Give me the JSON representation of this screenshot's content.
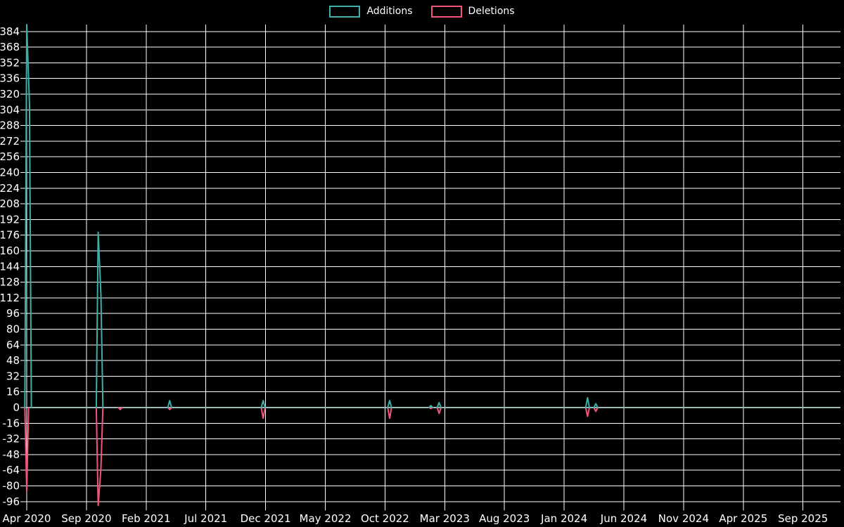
{
  "legend": {
    "additions_label": "Additions",
    "deletions_label": "Deletions"
  },
  "colors": {
    "background": "#000000",
    "grid": "#ffffff",
    "text": "#ffffff",
    "additions": "#3cb0a8",
    "deletions": "#f4547c",
    "zero_baseline": "#9bbab8"
  },
  "chart_data": {
    "type": "line",
    "title": "",
    "legend_position": "top-center",
    "grid": "on",
    "x_axis": {
      "tick_labels": [
        "Apr 2020",
        "Sep 2020",
        "Feb 2021",
        "Jul 2021",
        "Dec 2021",
        "May 2022",
        "Oct 2022",
        "Mar 2023",
        "Aug 2023",
        "Jan 2024",
        "Jun 2024",
        "Nov 2024",
        "Apr 2025",
        "Sep 2025"
      ],
      "months_per_tick": 5,
      "unit": "weekly samples",
      "weeks_span": 296
    },
    "y_axis": {
      "min": -96,
      "max": 384,
      "step": 16,
      "tick_labels": [
        "384",
        "368",
        "352",
        "336",
        "320",
        "304",
        "288",
        "272",
        "256",
        "240",
        "224",
        "208",
        "192",
        "176",
        "160",
        "144",
        "128",
        "112",
        "96",
        "80",
        "64",
        "48",
        "32",
        "16",
        "0",
        "-16",
        "-32",
        "-48",
        "-64",
        "-80",
        "-96"
      ]
    },
    "baseline_value": 0,
    "series": [
      {
        "name": "Additions",
        "color_key": "additions",
        "points": [
          {
            "week": 0,
            "value": 391
          },
          {
            "week": 1,
            "value": 310
          },
          {
            "week": 26,
            "value": 179
          },
          {
            "week": 27,
            "value": 115
          },
          {
            "week": 52,
            "value": 7
          },
          {
            "week": 86,
            "value": 7
          },
          {
            "week": 132,
            "value": 7
          },
          {
            "week": 147,
            "value": 2
          },
          {
            "week": 150,
            "value": 5
          },
          {
            "week": 204,
            "value": 10
          },
          {
            "week": 207,
            "value": 4
          }
        ]
      },
      {
        "name": "Deletions",
        "color_key": "deletions",
        "points": [
          {
            "week": 0,
            "value": -85
          },
          {
            "week": 26,
            "value": -100
          },
          {
            "week": 27,
            "value": -62
          },
          {
            "week": 34,
            "value": -2
          },
          {
            "week": 52,
            "value": -2
          },
          {
            "week": 86,
            "value": -11
          },
          {
            "week": 132,
            "value": -11
          },
          {
            "week": 147,
            "value": -1
          },
          {
            "week": 150,
            "value": -6
          },
          {
            "week": 204,
            "value": -9
          },
          {
            "week": 207,
            "value": -4
          }
        ]
      }
    ]
  }
}
